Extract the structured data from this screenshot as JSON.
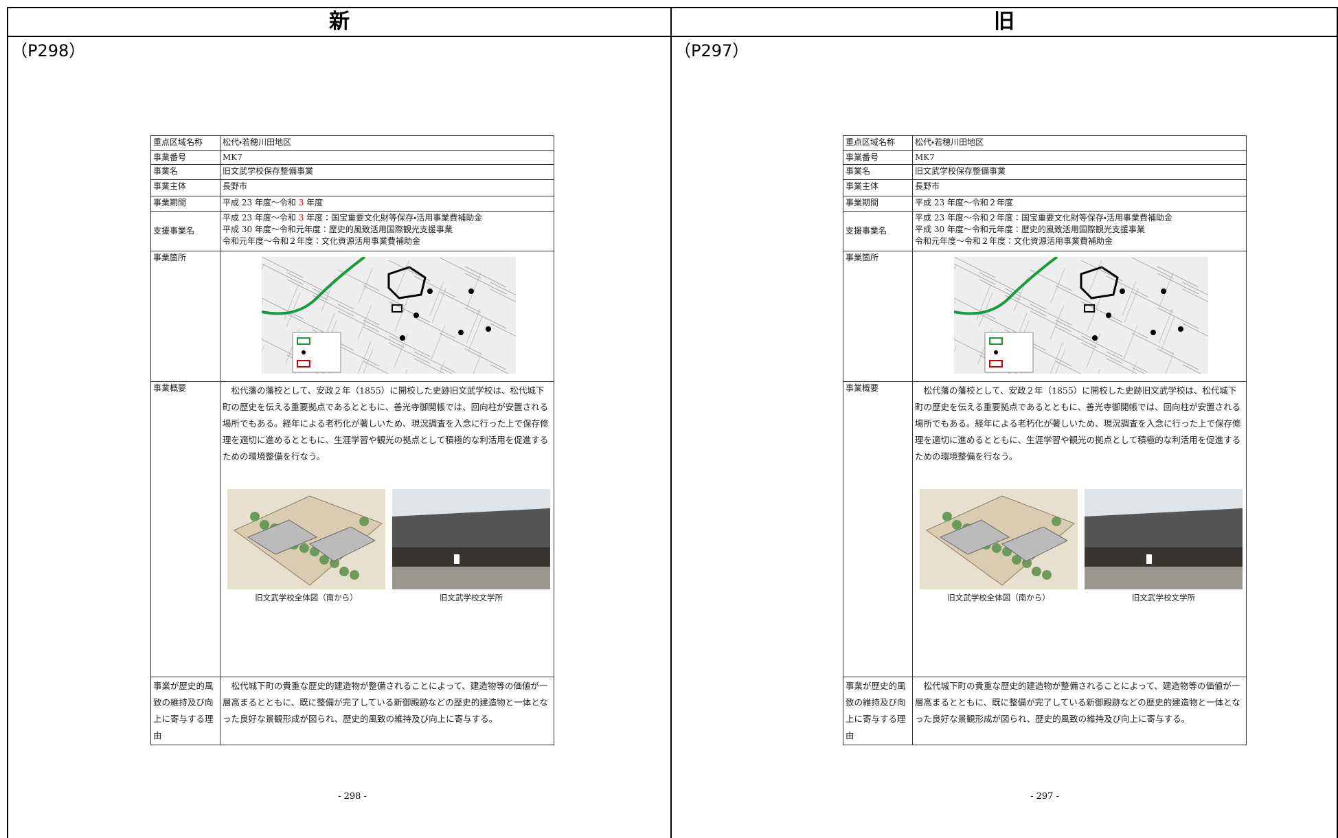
{
  "columns": [
    {
      "header": "新",
      "page_ref": "（P298）",
      "table": {
        "rows": [
          {
            "label": "重点区域名称",
            "lines": [
              "松代・若穂川田地区"
            ]
          },
          {
            "label": "事業番号",
            "lines": [
              "MK7"
            ]
          },
          {
            "label": "事業名",
            "lines": [
              "旧文武学校保存整備事業"
            ]
          },
          {
            "label": "事業主体",
            "lines": [
              "長野市"
            ]
          },
          {
            "label": "事業期間",
            "lines": [
              [
                {
                  "text": "平成 23 年度～令和 "
                },
                {
                  "text": "3",
                  "color": "#e00000"
                },
                {
                  "text": " 年度"
                }
              ]
            ]
          },
          {
            "label": "支援事業名",
            "lines": [
              [
                {
                  "text": "平成 23 年度～令和 "
                },
                {
                  "text": "3",
                  "color": "#e00000"
                },
                {
                  "text": " 年度：国宝重要文化財等保存・活用事業費補助金"
                }
              ],
              "平成 30 年度～令和元年度：歴史的風致活用国際観光支援事業",
              "令和元年度～令和２年度：文化資源活用事業費補助金"
            ]
          },
          {
            "label": "事業箇所",
            "lines": []
          },
          {
            "label": "事業概要",
            "paragraph": "　松代藩の藩校として、安政２年（1855）に開校した史跡旧文武学校は、松代城下町の歴史を伝える重要拠点であるとともに、善光寺御開帳では、回向柱が安置される場所でもある。経年による老朽化が著しいため、現況調査を入念に行った上で保存修理を適切に進めるとともに、生涯学習や観光の拠点として積極的な利活用を促進するための環境整備を行なう。",
            "captions": [
              "旧文武学校全体図（南から）",
              "旧文武学校文学所"
            ]
          },
          {
            "label": "事業が歴史的風致の維持及び向上に寄与する理由",
            "paragraph": "　松代城下町の貴重な歴史的建造物が整備されることによって、建造物等の価値が一層高まるとともに、既に整備が完了している新御殿跡などの歴史的建造物と一体となった良好な景観形成が図られ、歴史的風致の維持及び向上に寄与する。"
          }
        ]
      },
      "page_number": "- 298 -"
    },
    {
      "header": "旧",
      "page_ref": "（P297）",
      "table": {
        "rows": [
          {
            "label": "重点区域名称",
            "lines": [
              "松代・若穂川田地区"
            ]
          },
          {
            "label": "事業番号",
            "lines": [
              "MK7"
            ]
          },
          {
            "label": "事業名",
            "lines": [
              "旧文武学校保存整備事業"
            ]
          },
          {
            "label": "事業主体",
            "lines": [
              "長野市"
            ]
          },
          {
            "label": "事業期間",
            "lines": [
              "平成 23 年度～令和２年度"
            ]
          },
          {
            "label": "支援事業名",
            "lines": [
              "平成 23 年度～令和２年度：国宝重要文化財等保存・活用事業費補助金",
              "平成 30 年度～令和元年度：歴史的風致活用国際観光支援事業",
              "令和元年度～令和２年度：文化資源活用事業費補助金"
            ]
          },
          {
            "label": "事業箇所",
            "lines": []
          },
          {
            "label": "事業概要",
            "paragraph": "　松代藩の藩校として、安政２年（1855）に開校した史跡旧文武学校は、松代城下町の歴史を伝える重要拠点であるとともに、善光寺御開帳では、回向柱が安置される場所でもある。経年による老朽化が著しいため、現況調査を入念に行った上で保存修理を適切に進めるとともに、生涯学習や観光の拠点として積極的な利活用を促進するための環境整備を行なう。",
            "captions": [
              "旧文武学校全体図（南から）",
              "旧文武学校文学所"
            ]
          },
          {
            "label": "事業が歴史的風致の維持及び向上に寄与する理由",
            "paragraph": "　松代城下町の貴重な歴史的建造物が整備されることによって、建造物等の価値が一層高まるとともに、既に整備が完了している新御殿跡などの歴史的建造物と一体となった良好な景観形成が図られ、歴史的風致の維持及び向上に寄与する。"
          }
        ]
      },
      "page_number": "- 297 -"
    }
  ]
}
